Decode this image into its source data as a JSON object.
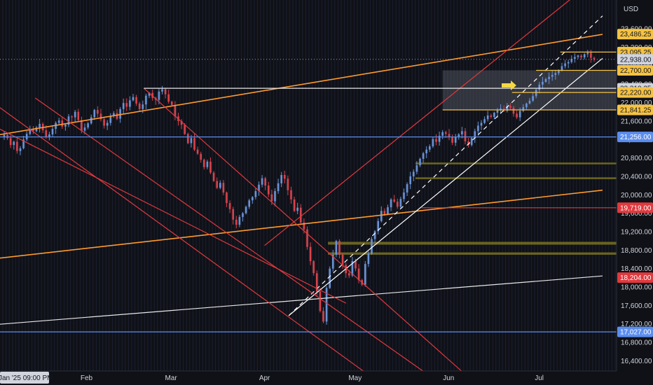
{
  "chart_data": {
    "type": "candlestick",
    "currency": "USD",
    "ylim": [
      16300,
      23800
    ],
    "y_ticks": [
      "23,600.00",
      "23,200.00",
      "22,800.00",
      "22,400.00",
      "22,000.00",
      "21,600.00",
      "21,200.00",
      "20,800.00",
      "20,400.00",
      "20,000.00",
      "19,600.00",
      "19,200.00",
      "18,800.00",
      "18,400.00",
      "18,000.00",
      "17,600.00",
      "17,200.00",
      "16,800.00",
      "16,400.00"
    ],
    "y_tick_values": [
      23600,
      23200,
      22800,
      22400,
      22000,
      21600,
      21200,
      20800,
      20400,
      20000,
      19600,
      19200,
      18800,
      18400,
      18000,
      17600,
      17200,
      16800,
      16400
    ],
    "x_ticks": [
      "Feb",
      "Mar",
      "Apr",
      "May",
      "Jun",
      "Jul"
    ],
    "x_tick_dates": [
      "2025-02-01",
      "2025-03-01",
      "2025-04-01",
      "2025-05-01",
      "2025-06-01",
      "2025-07-01"
    ],
    "date_range": [
      "2025-01-01",
      "2025-07-22"
    ],
    "crosshair_date": "Jan '25  09:00 PM",
    "last_price": {
      "value": 22938,
      "label": "22,938.00",
      "color": "#d1d4dc"
    },
    "price_labels": [
      {
        "value": 23486.25,
        "label": "23,486.25",
        "color": "#f5c242"
      },
      {
        "value": 23095.25,
        "label": "23,095.25",
        "color": "#f5c242"
      },
      {
        "value": 22700,
        "label": "22,700.00",
        "color": "#f5c242"
      },
      {
        "value": 22310.25,
        "label": "22,310.25",
        "color": "#d1d4dc"
      },
      {
        "value": 22220,
        "label": "22,220.00",
        "color": "#f5c242"
      },
      {
        "value": 21841.25,
        "label": "21,841.25",
        "color": "#f5c242"
      },
      {
        "value": 21256,
        "label": "21,256.00",
        "color": "#5b8def"
      },
      {
        "value": 19719,
        "label": "19,719.00",
        "color": "#e0393e"
      },
      {
        "value": 18204,
        "label": "18,204.00",
        "color": "#e0393e"
      },
      {
        "value": 17027,
        "label": "17,027.00",
        "color": "#5b8def"
      }
    ],
    "zones": [
      {
        "from": 20700,
        "to": 20660,
        "start": "2025-05-21",
        "color": "#7a7220"
      },
      {
        "from": 20380,
        "to": 20340,
        "start": "2025-05-21",
        "color": "#7a7220"
      },
      {
        "from": 18980,
        "to": 18920,
        "start": "2025-04-22",
        "color": "#7a7220"
      },
      {
        "from": 18750,
        "to": 18700,
        "start": "2025-04-22",
        "color": "#7a7220"
      },
      {
        "from": 22700,
        "to": 21841.25,
        "start": "2025-05-30",
        "color": "#5a5f6b"
      }
    ],
    "trend_lines": [
      {
        "points": [
          [
            "2025-01-01",
            18610
          ],
          [
            "2025-07-22",
            20100
          ]
        ],
        "color": "#ff9a2e"
      },
      {
        "points": [
          [
            "2025-01-01",
            21280
          ],
          [
            "2025-07-22",
            23480
          ]
        ],
        "color": "#ff9a2e"
      },
      {
        "points": [
          [
            "2025-01-01",
            17180
          ],
          [
            "2025-07-22",
            18240
          ]
        ],
        "color": "#e8e8e8"
      },
      {
        "points": [
          [
            "2025-04-09",
            17380
          ],
          [
            "2025-07-22",
            22960
          ]
        ],
        "color": "#ffffff"
      },
      {
        "points": [
          [
            "2025-04-09",
            17380
          ],
          [
            "2025-07-22",
            23880
          ]
        ],
        "color": "#ffffff",
        "dashed": true
      },
      {
        "points": [
          [
            "2025-04-01",
            18900
          ],
          [
            "2025-07-22",
            24800
          ]
        ],
        "color": "#e0393e"
      },
      {
        "points": [
          [
            "2025-01-01",
            22000
          ],
          [
            "2025-05-18",
            15500
          ]
        ],
        "color": "#e0393e"
      },
      {
        "points": [
          [
            "2025-01-15",
            22100
          ],
          [
            "2025-06-05",
            15600
          ]
        ],
        "color": "#e0393e"
      },
      {
        "points": [
          [
            "2025-02-20",
            22310
          ],
          [
            "2025-06-10",
            15900
          ]
        ],
        "color": "#e0393e"
      },
      {
        "points": [
          [
            "2025-01-01",
            21500
          ],
          [
            "2025-04-28",
            17650
          ]
        ],
        "color": "#e0393e"
      }
    ],
    "level_lines": [
      {
        "value": 21256,
        "start": "2025-01-01",
        "color": "#5b8def"
      },
      {
        "value": 17027,
        "start": "2025-01-01",
        "color": "#5b8def"
      },
      {
        "value": 19719,
        "start": "2025-05-23",
        "color": "#e0393e"
      },
      {
        "value": 22310.25,
        "start": "2025-02-20",
        "color": "#e8e8e8"
      },
      {
        "value": 22220,
        "start": "2025-06-22",
        "color": "#f5c242"
      },
      {
        "value": 21841.25,
        "start": "2025-05-30",
        "color": "#f5c242"
      },
      {
        "value": 22700,
        "start": "2025-06-30",
        "color": "#f5c242"
      },
      {
        "value": 23095.25,
        "start": "2025-07-08",
        "color": "#f5c242"
      }
    ],
    "ohlc_closes": [
      21300,
      21230,
      21080,
      21150,
      20950,
      21010,
      21200,
      21320,
      21420,
      21380,
      21460,
      21540,
      21400,
      21250,
      21310,
      21430,
      21560,
      21610,
      21480,
      21520,
      21700,
      21680,
      21800,
      21620,
      21390,
      21460,
      21550,
      21680,
      21840,
      21760,
      21640,
      21500,
      21560,
      21710,
      21770,
      21650,
      21860,
      21990,
      21910,
      22050,
      22120,
      21980,
      21860,
      21960,
      22150,
      22210,
      22100,
      22060,
      22240,
      22290,
      22180,
      22020,
      21950,
      21700,
      21600,
      21520,
      21320,
      21120,
      21230,
      20980,
      20890,
      20760,
      20600,
      20720,
      20480,
      20300,
      20150,
      20260,
      20050,
      19820,
      19690,
      19460,
      19350,
      19520,
      19600,
      19740,
      19880,
      19950,
      20080,
      20220,
      20360,
      20200,
      20010,
      19860,
      20080,
      20250,
      20430,
      20350,
      20100,
      19900,
      19650,
      19720,
      19400,
      19250,
      18870,
      18560,
      18300,
      17900,
      17480,
      17250,
      17980,
      18400,
      18700,
      19000,
      18700,
      18480,
      18300,
      18250,
      18560,
      18400,
      18150,
      18050,
      18500,
      18720,
      19040,
      19210,
      19430,
      19650,
      19580,
      19730,
      19900,
      19850,
      19740,
      19910,
      20050,
      20230,
      20400,
      20500,
      20640,
      20780,
      20900,
      20980,
      21050,
      21210,
      21150,
      21280,
      21360,
      21320,
      21260,
      21130,
      21250,
      21310,
      21380,
      21160,
      21080,
      21230,
      21380,
      21500,
      21560,
      21640,
      21720,
      21690,
      21780,
      21830,
      21870,
      21820,
      21930,
      21890,
      21760,
      21680,
      21820,
      21900,
      21980,
      22040,
      22140,
      22280,
      22390,
      22450,
      22510,
      22560,
      22600,
      22640,
      22700,
      22790,
      22850,
      22880,
      22950,
      22990,
      23020,
      22980,
      23050,
      23080,
      22970,
      22938
    ]
  }
}
